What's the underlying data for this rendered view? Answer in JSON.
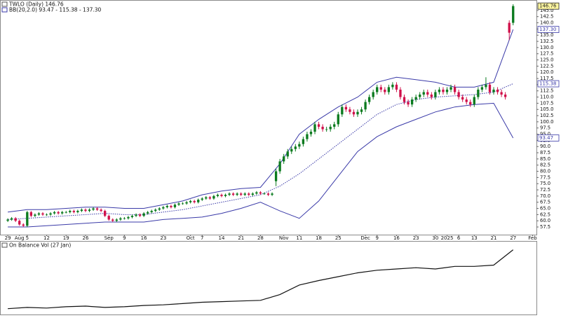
{
  "chart_data": [
    {
      "type": "candlestick",
      "title": "TWLO (Daily) 146.76",
      "subtitle": "BB(20,2.0) 93.47 - 115.38 - 137.30",
      "xlim": [
        -2,
        136
      ],
      "xticks": [
        {
          "value": 0,
          "label": "29"
        },
        {
          "value": 3,
          "label": "Aug"
        },
        {
          "value": 5,
          "label": "5"
        },
        {
          "value": 10,
          "label": "12"
        },
        {
          "value": 15,
          "label": "19"
        },
        {
          "value": 20,
          "label": "26"
        },
        {
          "value": 26,
          "label": "Sep"
        },
        {
          "value": 30,
          "label": "9"
        },
        {
          "value": 35,
          "label": "16"
        },
        {
          "value": 40,
          "label": "23"
        },
        {
          "value": 47,
          "label": "Oct"
        },
        {
          "value": 50,
          "label": "7"
        },
        {
          "value": 55,
          "label": "14"
        },
        {
          "value": 60,
          "label": "21"
        },
        {
          "value": 65,
          "label": "28"
        },
        {
          "value": 71,
          "label": "Nov"
        },
        {
          "value": 75,
          "label": "11"
        },
        {
          "value": 80,
          "label": "18"
        },
        {
          "value": 85,
          "label": "25"
        },
        {
          "value": 92,
          "label": "Dec"
        },
        {
          "value": 95,
          "label": "9"
        },
        {
          "value": 100,
          "label": "16"
        },
        {
          "value": 105,
          "label": "23"
        },
        {
          "value": 110,
          "label": "30"
        },
        {
          "value": 113,
          "label": "2025"
        },
        {
          "value": 116,
          "label": "6"
        },
        {
          "value": 120,
          "label": "13"
        },
        {
          "value": 125,
          "label": "21"
        },
        {
          "value": 130,
          "label": "27"
        },
        {
          "value": 135,
          "label": "Feb"
        }
      ],
      "ylim": [
        54.4,
        147.8
      ],
      "yticks": [
        {
          "value": 145,
          "label": "145.0"
        },
        142.5,
        {
          "value": 140,
          "label": "140.0"
        },
        137.5,
        {
          "value": 135,
          "label": "135.0"
        },
        132.5,
        {
          "value": 130,
          "label": "130.0"
        },
        127.5,
        {
          "value": 125,
          "label": "125.0"
        },
        122.5,
        {
          "value": 120,
          "label": "120.0"
        },
        117.5,
        {
          "value": 115,
          "label": "115.0"
        },
        112.5,
        {
          "value": 110,
          "label": "110.0"
        },
        107.5,
        {
          "value": 105,
          "label": "105.0"
        },
        102.5,
        {
          "value": 100,
          "label": "100.0"
        },
        97.5,
        {
          "value": 95,
          "label": "95.0"
        },
        92.5,
        {
          "value": 90,
          "label": "90.0"
        },
        87.5,
        {
          "value": 85,
          "label": "85.0"
        },
        82.5,
        {
          "value": 80,
          "label": "80.0"
        },
        77.5,
        {
          "value": 75,
          "label": "75.0"
        },
        72.5,
        {
          "value": 70,
          "label": "70.0"
        },
        67.5,
        {
          "value": 65,
          "label": "65.0"
        },
        62.5,
        {
          "value": 60,
          "label": "60.0"
        },
        57.5
      ],
      "price_labels": [
        {
          "value": 146.76,
          "label": "146.76",
          "color": "#222222",
          "fill": "#fff7a0"
        },
        {
          "value": 137.3,
          "label": "137.30",
          "color": "#3a3aa8",
          "fill": "#ffffff"
        },
        {
          "value": 115.38,
          "label": "115.38",
          "color": "#3a3aa8",
          "fill": "#ffffff"
        },
        {
          "value": 93.47,
          "label": "93.47",
          "color": "#3a3aa8",
          "fill": "#ffffff"
        }
      ],
      "up_color": "#0a7a1e",
      "down_color": "#d0104a",
      "open": [
        60,
        60.5,
        61,
        60,
        58.5,
        58,
        63.5,
        62,
        62.5,
        63,
        62.5,
        62.5,
        63,
        63.5,
        63,
        63.5,
        63.5,
        64,
        63.5,
        64,
        64.5,
        64,
        64.5,
        65,
        64.5,
        64,
        62,
        60.5,
        60,
        60.5,
        61,
        61,
        61.5,
        62,
        62.5,
        62,
        63,
        63.5,
        64,
        64.5,
        65,
        65.5,
        66,
        65.5,
        66.5,
        67,
        67,
        67.5,
        68,
        67.5,
        68.5,
        69,
        69.5,
        69,
        70,
        70.5,
        70,
        70.5,
        71,
        70.5,
        71,
        70.5,
        71,
        70.5,
        71,
        71.5,
        71,
        71,
        70.5,
        76,
        80,
        84,
        86,
        88,
        89,
        90,
        91,
        93,
        95,
        96,
        99,
        98,
        97,
        97,
        98,
        99,
        103,
        106,
        105,
        104,
        103,
        104,
        105,
        108,
        110,
        112,
        114,
        113,
        112,
        114,
        115,
        113,
        110,
        108,
        107,
        109,
        110,
        111,
        112,
        111,
        110,
        112,
        113,
        112,
        113,
        114,
        112,
        110,
        109,
        108,
        107,
        110,
        113,
        114,
        115,
        112,
        113,
        112,
        111,
        140,
        140
      ],
      "high": [
        61,
        61.5,
        61.5,
        60.5,
        59,
        64,
        64,
        63,
        63.5,
        63.5,
        63,
        63.5,
        64,
        64,
        64,
        64,
        64.5,
        64.5,
        64.5,
        65,
        65,
        65,
        65.5,
        65.5,
        65,
        64.5,
        62.5,
        61,
        61,
        61.5,
        61.5,
        62,
        62.5,
        63,
        63,
        63.5,
        64,
        64.5,
        65,
        65.5,
        66,
        66.5,
        66.5,
        67,
        67.5,
        67.5,
        68,
        68.5,
        68.5,
        69,
        69.5,
        70,
        70,
        70.5,
        71,
        71,
        71,
        71.5,
        71.5,
        71.5,
        71.5,
        71.5,
        71.5,
        71.5,
        72,
        72,
        71.5,
        71.5,
        71.5,
        81,
        85,
        87,
        89,
        90,
        91,
        92,
        94,
        96,
        97,
        100,
        100,
        99,
        98,
        99,
        100,
        104,
        107,
        107,
        106,
        105,
        105,
        106,
        109,
        111,
        113,
        115,
        115,
        114,
        115,
        116,
        116,
        114,
        111,
        109,
        110,
        111,
        112,
        113,
        113,
        112,
        113,
        114,
        114,
        114,
        115,
        115,
        113,
        111,
        110,
        109,
        111,
        114,
        115,
        118,
        116,
        114,
        114,
        113,
        112,
        141,
        147.5
      ],
      "low": [
        59.5,
        60,
        59.5,
        58,
        57.5,
        57.5,
        61.5,
        61.5,
        62,
        62,
        62,
        62,
        62.5,
        62.5,
        62.5,
        63,
        63,
        63,
        63,
        63.5,
        63.5,
        63.5,
        64,
        64,
        63.5,
        61.5,
        60,
        59.5,
        59.5,
        60,
        60.5,
        60.5,
        61,
        61.5,
        61.5,
        61.5,
        62.5,
        63,
        63.5,
        64,
        64.5,
        65,
        65,
        65,
        66,
        66.5,
        66.5,
        67,
        67,
        67,
        68,
        68.5,
        68.5,
        68.5,
        69.5,
        69.5,
        69.5,
        70,
        70,
        70,
        70,
        70,
        70,
        70,
        70.5,
        70.5,
        70.5,
        70,
        70,
        74,
        79,
        83,
        85,
        87,
        88,
        89,
        90,
        92,
        94,
        95,
        97,
        96,
        96,
        96,
        97,
        98,
        102,
        104,
        103,
        102,
        102,
        103,
        104,
        107,
        109,
        111,
        112,
        111,
        111,
        113,
        112,
        109,
        107,
        106,
        106,
        108,
        109,
        110,
        110,
        109,
        109,
        111,
        111,
        111,
        112,
        111,
        109,
        108,
        107,
        106,
        106,
        109,
        112,
        113,
        111,
        111,
        111,
        110,
        109,
        133,
        139
      ],
      "close": [
        60.5,
        61,
        60,
        58.5,
        58,
        63.5,
        62,
        62.5,
        63,
        62.5,
        62.5,
        63,
        63.5,
        63,
        63.5,
        63.5,
        64,
        63.5,
        64,
        64.5,
        64,
        64.5,
        65,
        64.5,
        64,
        62,
        60.5,
        60,
        60.5,
        61,
        61,
        61.5,
        62,
        62.5,
        62,
        63,
        63.5,
        64,
        64.5,
        65,
        65.5,
        66,
        65.5,
        66.5,
        67,
        67,
        67.5,
        68,
        67.5,
        68.5,
        69,
        69.5,
        69,
        70,
        70.5,
        70,
        70.5,
        71,
        70.5,
        71,
        70.5,
        71,
        70.5,
        71,
        71.5,
        71,
        71,
        70.5,
        71,
        80,
        84,
        86,
        88,
        89,
        90,
        91,
        93,
        95,
        96,
        99,
        98,
        97,
        97,
        98,
        99,
        103,
        106,
        105,
        104,
        103,
        104,
        105,
        108,
        110,
        112,
        114,
        113,
        112,
        114,
        115,
        113,
        110,
        108,
        107,
        109,
        110,
        111,
        112,
        111,
        110,
        112,
        113,
        112,
        113,
        114,
        112,
        110,
        109,
        108,
        107,
        110,
        113,
        114,
        115,
        112,
        113,
        112,
        111,
        110,
        136,
        146.76
      ],
      "bands": [
        {
          "color": "#3a3aa8",
          "dash": false,
          "x": [
            0,
            5,
            10,
            15,
            20,
            25,
            30,
            35,
            40,
            45,
            50,
            55,
            60,
            65,
            70,
            75,
            80,
            85,
            90,
            95,
            100,
            105,
            110,
            115,
            120,
            125,
            130
          ],
          "values": [
            63.5,
            64.5,
            64.5,
            65,
            65.5,
            65.5,
            65,
            65,
            66.5,
            68,
            70.5,
            72,
            73,
            73.5,
            83,
            95,
            101,
            106,
            110,
            116,
            118,
            117,
            116,
            114,
            114,
            116,
            137.3
          ]
        },
        {
          "color": "#3a3aa8",
          "dash": true,
          "x": [
            0,
            5,
            10,
            15,
            20,
            25,
            30,
            35,
            40,
            45,
            50,
            55,
            60,
            65,
            70,
            75,
            80,
            85,
            90,
            95,
            100,
            105,
            110,
            115,
            120,
            125,
            130
          ],
          "values": [
            60.5,
            61,
            61.5,
            62,
            62.5,
            63,
            62.5,
            62.5,
            63.5,
            64.5,
            66,
            67.5,
            69,
            70.5,
            74,
            79,
            85,
            91,
            97,
            103,
            107,
            109,
            110,
            110.5,
            111,
            112,
            115.38
          ]
        },
        {
          "color": "#3a3aa8",
          "dash": false,
          "x": [
            0,
            5,
            10,
            15,
            20,
            25,
            30,
            35,
            40,
            45,
            50,
            55,
            60,
            65,
            70,
            75,
            80,
            85,
            90,
            95,
            100,
            105,
            110,
            115,
            120,
            125,
            130
          ],
          "values": [
            57.5,
            57.5,
            58,
            58.5,
            59,
            59.5,
            59.5,
            59.5,
            60.5,
            61,
            61.5,
            63,
            65,
            67.5,
            64,
            61,
            68,
            78,
            88,
            94,
            98,
            101,
            104,
            106,
            107,
            107.5,
            93.47
          ]
        }
      ]
    },
    {
      "type": "line",
      "title": "On Balance Vol (27 Jan)",
      "color": "#111111",
      "xlim": [
        -2,
        136
      ],
      "ylim": [
        0,
        105
      ],
      "x": [
        0,
        5,
        10,
        15,
        20,
        25,
        30,
        35,
        40,
        45,
        50,
        55,
        60,
        65,
        70,
        75,
        80,
        85,
        90,
        95,
        100,
        105,
        110,
        115,
        120,
        125,
        130
      ],
      "values": [
        8,
        10,
        9,
        11,
        12,
        10,
        11,
        13,
        14,
        16,
        18,
        19,
        20,
        21,
        30,
        45,
        52,
        58,
        64,
        68,
        70,
        72,
        70,
        74,
        74,
        76,
        100
      ]
    }
  ]
}
